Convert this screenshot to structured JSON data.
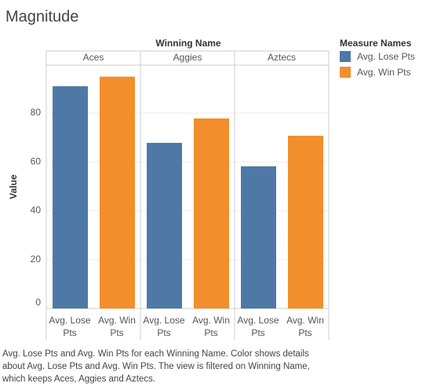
{
  "chart_data": {
    "type": "bar",
    "title": "Magnitude",
    "facet_label": "Winning Name",
    "categories": [
      "Aces",
      "Aggies",
      "Aztecs"
    ],
    "y_label": "Value",
    "legend_title": "Measure Names",
    "series": [
      {
        "name": "Avg. Lose Pts",
        "color": "#4e79a7",
        "values": [
          91,
          67.8,
          58.2
        ]
      },
      {
        "name": "Avg. Win Pts",
        "color": "#f28e2b",
        "values": [
          94.9,
          77.8,
          70.7
        ]
      }
    ],
    "ylim": [
      0,
      99.6
    ],
    "yticks": [
      0,
      20,
      40,
      60,
      80
    ],
    "grid": true,
    "caption": "Avg. Lose Pts and Avg. Win Pts for each Winning Name.  Color shows details about Avg. Lose Pts and Avg. Win Pts. The view is filtered on Winning Name, which keeps Aces, Aggies and Aztecs."
  }
}
